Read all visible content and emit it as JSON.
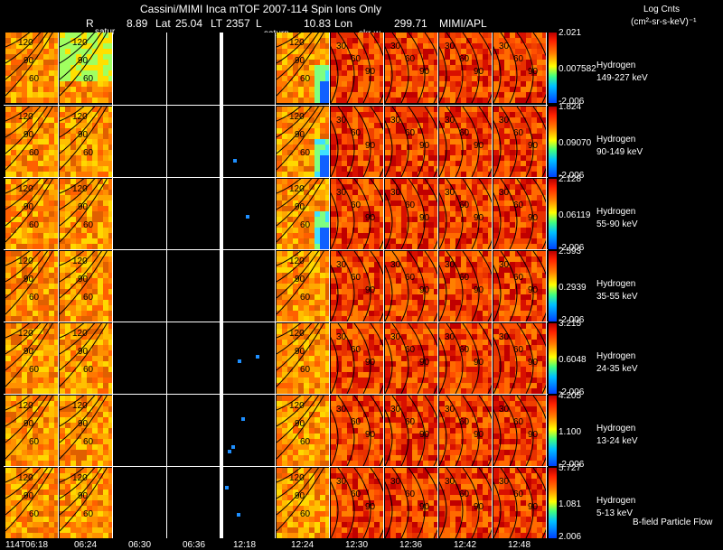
{
  "header": {
    "title": "Cassini/MIMI Inca mTOF  2007-114   Spin    Ions Only",
    "r_label": "R",
    "r_value": "8.89",
    "lat_label": "Lat",
    "lat_value": "25.04",
    "lt_label": "LT",
    "lt_value": "2357",
    "l_label": "L",
    "l_value": "10.83",
    "lon_label": "Lon",
    "lon_value": "299.71",
    "institution": "MIMI/APL",
    "units_title": "Log Cnts",
    "units": "(cm²-sr-s-keV)⁻¹"
  },
  "markers": {
    "saturn_1": "satur",
    "saturn_2": "saturn",
    "skr": "skr-w"
  },
  "rows": [
    {
      "species": "Hydrogen",
      "energy": "149-227 keV",
      "max": "2.021",
      "mid": "0.007582",
      "min": "-2.006"
    },
    {
      "species": "Hydrogen",
      "energy": "90-149 keV",
      "max": "1.824",
      "mid": "0.09070",
      "min": "-2.006"
    },
    {
      "species": "Hydrogen",
      "energy": "55-90 keV",
      "max": "2.128",
      "mid": "0.06119",
      "min": "-2.006"
    },
    {
      "species": "Hydrogen",
      "energy": "35-55 keV",
      "max": "2.593",
      "mid": "0.2939",
      "min": "-2.006"
    },
    {
      "species": "Hydrogen",
      "energy": "24-35 keV",
      "max": "3.215",
      "mid": "0.6048",
      "min": "-2.006"
    },
    {
      "species": "Hydrogen",
      "energy": "13-24 keV",
      "max": "4.205",
      "mid": "1.100",
      "min": "-2.006"
    },
    {
      "species": "Hydrogen",
      "energy": "5-13 keV",
      "max": "5.727",
      "mid": "1.081",
      "min": "2.006"
    }
  ],
  "time_labels": [
    "114T06:18",
    "06:24",
    "06:30",
    "06:36",
    "12:18",
    "12:24",
    "12:30",
    "12:36",
    "12:42",
    "12:48"
  ],
  "footer_note": "B-field Particle Flow",
  "contour_labels": {
    "left": [
      "120",
      "90",
      "60",
      "30",
      "150"
    ],
    "right": [
      "30",
      "60",
      "90"
    ]
  },
  "chart_data": {
    "type": "heatmap",
    "title": "Cassini/MIMI Inca mTOF 2007-114 Spin Ions Only",
    "species": "Hydrogen",
    "energy_channels_keV": [
      "149-227",
      "90-149",
      "55-90",
      "35-55",
      "24-35",
      "13-24",
      "5-13"
    ],
    "color_scale": "log counts (cm^2-sr-s-keV)^-1",
    "color_max": [
      2.021,
      1.824,
      2.128,
      2.593,
      3.215,
      4.205,
      5.727
    ],
    "color_min": [
      -2.006,
      -2.006,
      -2.006,
      -2.006,
      -2.006,
      -2.006,
      2.006
    ],
    "time_columns": [
      "06:18",
      "06:24",
      "06:30",
      "06:36",
      "12:18",
      "12:24",
      "12:30",
      "12:36",
      "12:42",
      "12:48"
    ],
    "data_gap_columns": [
      "06:30",
      "06:36",
      "12:18"
    ],
    "colors": {
      "hot": "#c00000",
      "warm": "#ff6000",
      "mid": "#ffd000",
      "cool": "#40ffa0",
      "cold": "#0040ff"
    }
  }
}
